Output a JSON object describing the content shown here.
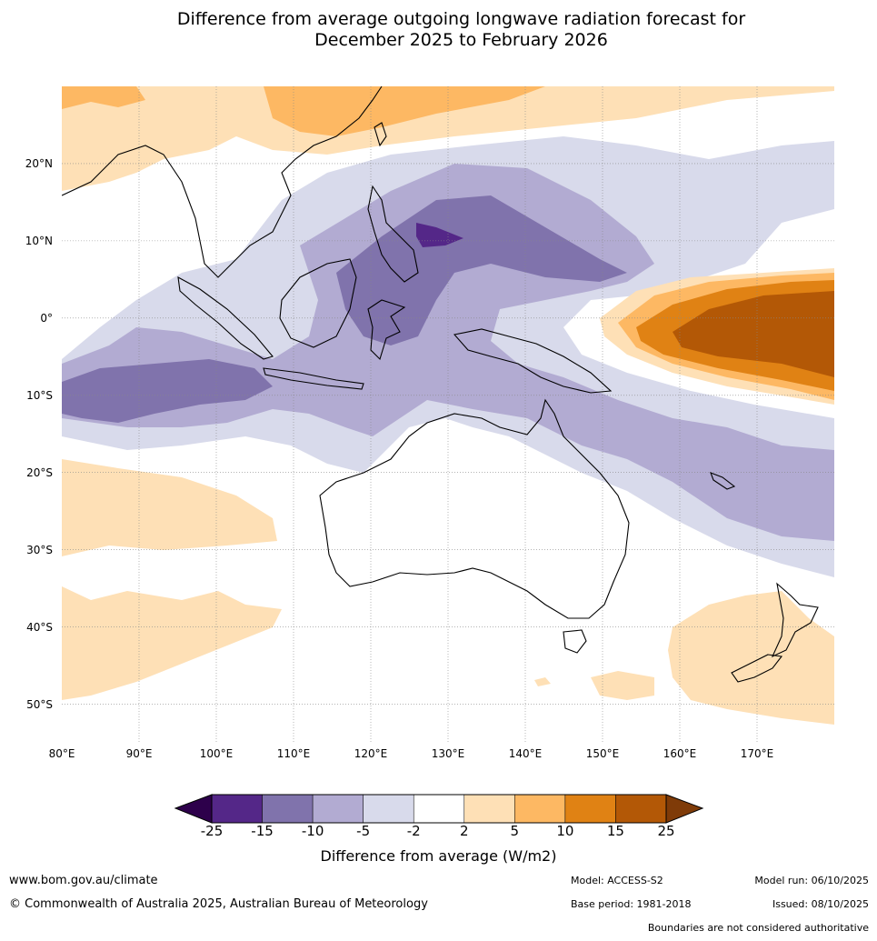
{
  "title": {
    "line1": "Difference from average outgoing longwave radiation forecast for",
    "line2": "December 2025 to February 2026"
  },
  "map": {
    "lon_labels": [
      "80°E",
      "90°E",
      "100°E",
      "110°E",
      "120°E",
      "130°E",
      "140°E",
      "150°E",
      "160°E",
      "170°E"
    ],
    "lat_labels": [
      "20°N",
      "10°N",
      "0°",
      "10°S",
      "20°S",
      "30°S",
      "40°S",
      "50°S"
    ],
    "extent": {
      "lon_min": 80,
      "lon_max": 180,
      "lat_min": -55,
      "lat_max": 30
    }
  },
  "colorbar": {
    "ticks": [
      "-25",
      "-15",
      "-10",
      "-5",
      "-2",
      "2",
      "5",
      "10",
      "15",
      "25"
    ],
    "bins": [
      {
        "range": "< -25",
        "color": "#2d004b"
      },
      {
        "range": "-25 to -15",
        "color": "#542788"
      },
      {
        "range": "-15 to -10",
        "color": "#8073ac"
      },
      {
        "range": "-10 to -5",
        "color": "#b2abd2"
      },
      {
        "range": "-5 to -2",
        "color": "#d8daeb"
      },
      {
        "range": "-2 to 2",
        "color": "#ffffff"
      },
      {
        "range": "2 to 5",
        "color": "#fee0b6"
      },
      {
        "range": "5 to 10",
        "color": "#fdb863"
      },
      {
        "range": "10 to 15",
        "color": "#e08214"
      },
      {
        "range": "15 to 25",
        "color": "#b35806"
      },
      {
        "range": "> 25",
        "color": "#7f3b08"
      }
    ],
    "title": "Difference from average (W/m2)"
  },
  "footer": {
    "url": "www.bom.gov.au/climate",
    "copyright": "© Commonwealth of Australia 2025, Australian Bureau of Meteorology",
    "model": "Model: ACCESS-S2",
    "base_period": "Base period: 1981-2018",
    "model_run": "Model run: 06/10/2025",
    "issued": "Issued: 08/10/2025",
    "disclaimer": "Boundaries are not considered authoritative"
  }
}
